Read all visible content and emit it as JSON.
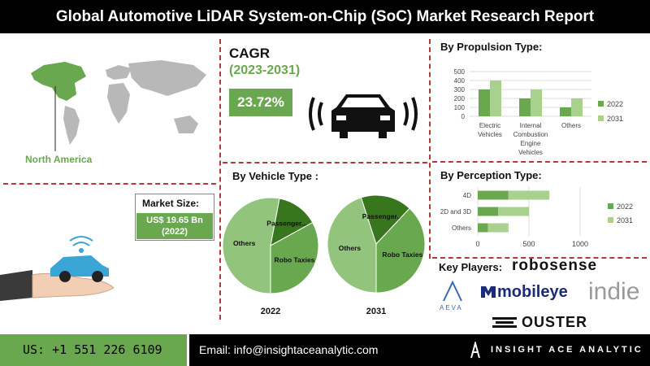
{
  "title": "Global Automotive LiDAR System-on-Chip (SoC) Market Research Report",
  "cagr": {
    "label": "CAGR",
    "period": "(2023-2031)",
    "value": "23.72%"
  },
  "region": "North America",
  "market_size": {
    "label": "Market Size:",
    "value": "US$ 19.65 Bn",
    "year": "(2022)"
  },
  "key_players_label": "Key Players:",
  "players": [
    "robosense",
    "mobileye",
    "indie",
    "AEVA",
    "OUSTER"
  ],
  "contact": {
    "phone": "US: +1 551 226 6109",
    "email": "Email: info@insightaceanalytic.com"
  },
  "brand": "INSIGHT ACE ANALYTIC",
  "colors": {
    "accent_green": "#6aa84f",
    "series_2022": "#6aa84f",
    "series_2031": "#a9d18e",
    "divider": "#b43a3a"
  },
  "icons": [
    "world-map-icon",
    "car-radar-icon",
    "hand-car-icon",
    "insightace-logo-icon"
  ],
  "chart_data": [
    {
      "id": "propulsion",
      "type": "bar",
      "title": "By Propulsion Type:",
      "categories": [
        "Electric Vehicles",
        "Internal Combustion Engine Vehicles",
        "Others"
      ],
      "category_lines": [
        [
          "Electric",
          "Vehicles"
        ],
        [
          "Internal",
          "Combustion",
          "Engine",
          "Vehicles"
        ],
        [
          "Others"
        ]
      ],
      "series": [
        {
          "name": "2022",
          "values": [
            300,
            200,
            100
          ]
        },
        {
          "name": "2031",
          "values": [
            400,
            300,
            200
          ]
        }
      ],
      "ylim": [
        0,
        500
      ],
      "yticks": [
        0,
        100,
        200,
        300,
        400,
        500
      ],
      "legend": "right"
    },
    {
      "id": "perception",
      "type": "bar",
      "orientation": "horizontal",
      "title": "By Perception Type:",
      "categories": [
        "4D",
        "2D and 3D",
        "Others"
      ],
      "series": [
        {
          "name": "2022",
          "values": [
            300,
            200,
            100
          ]
        },
        {
          "name": "2031",
          "values": [
            400,
            300,
            200
          ]
        }
      ],
      "xlim": [
        0,
        1000
      ],
      "xticks": [
        0,
        500,
        1000
      ],
      "legend": "right"
    },
    {
      "id": "vehicle",
      "type": "pie",
      "title": "By Vehicle Type :",
      "pies": [
        {
          "label": "2022",
          "slices": [
            {
              "name": "Others",
              "value": 53
            },
            {
              "name": "Passenger...",
              "value": 14
            },
            {
              "name": "Robo Taxies",
              "value": 33
            }
          ]
        },
        {
          "label": "2031",
          "slices": [
            {
              "name": "Others",
              "value": 45
            },
            {
              "name": "Passenger...",
              "value": 17
            },
            {
              "name": "Robo Taxies",
              "value": 38
            }
          ]
        }
      ]
    }
  ]
}
